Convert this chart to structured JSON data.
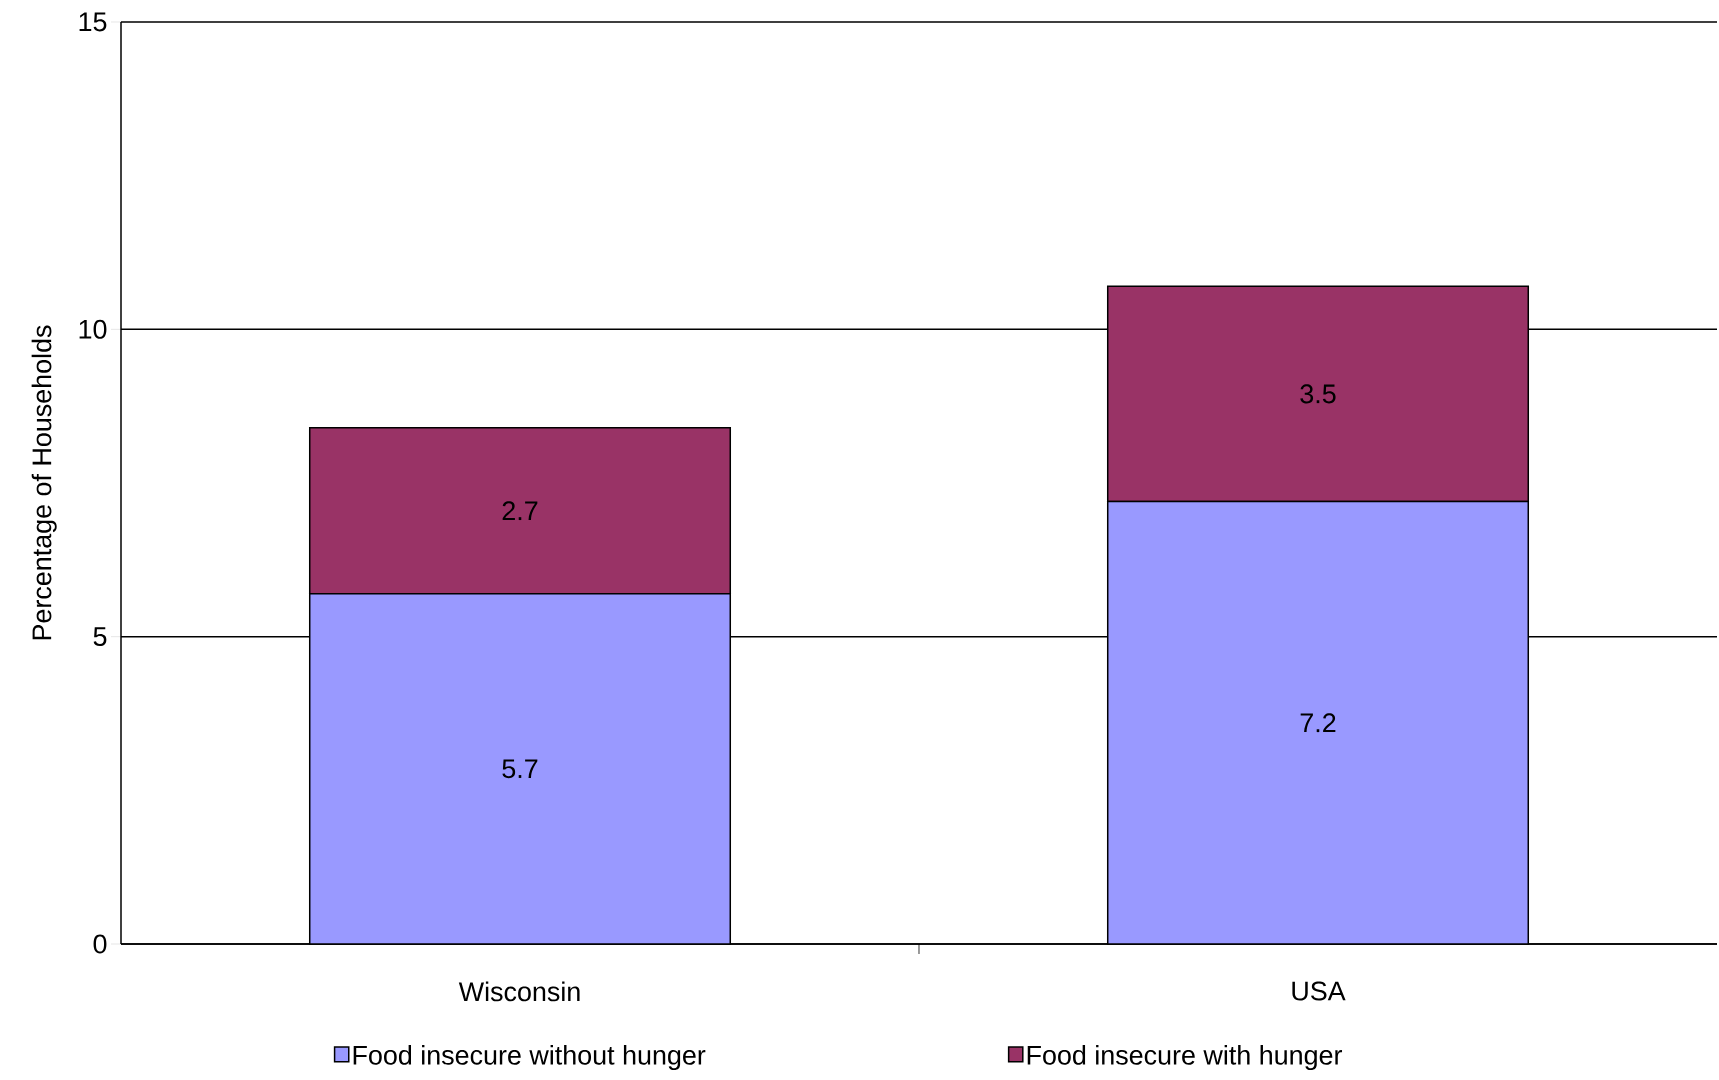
{
  "chart_data": {
    "type": "bar",
    "stacked": true,
    "ylabel": "Percentage of Households",
    "categories": [
      "Wisconsin",
      "USA"
    ],
    "series": [
      {
        "name": "Food insecure without hunger",
        "color": "#9999ff",
        "values": [
          5.7,
          7.2
        ]
      },
      {
        "name": "Food insecure with hunger",
        "color": "#993366",
        "values": [
          2.7,
          3.5
        ]
      }
    ],
    "ylim": [
      0,
      15
    ],
    "yticks": [
      0,
      5,
      10,
      15
    ],
    "grid": "y",
    "legend": "bottom",
    "data_labels": true
  }
}
